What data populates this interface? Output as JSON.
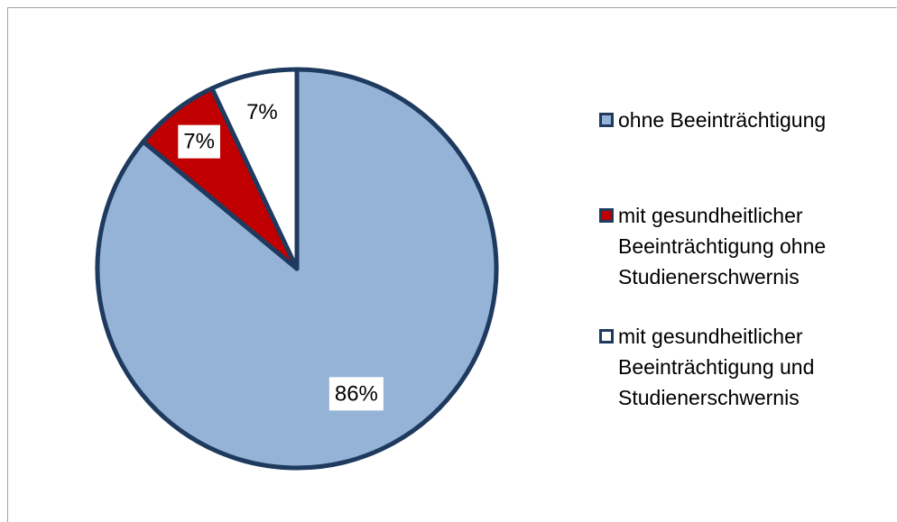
{
  "chart_data": {
    "type": "pie",
    "categories": [
      "ohne Beeinträchtigung",
      "mit gesundheitlicher Beeinträchtigung ohne Studienerschwernis",
      "mit gesundheitlicher Beeinträchtigung und Studienerschwernis"
    ],
    "values": [
      86,
      7,
      7
    ],
    "value_labels": [
      "86%",
      "7%",
      "7%"
    ],
    "colors": [
      "#95b3d7",
      "#c00000",
      "#ffffff"
    ],
    "legend": "right"
  }
}
